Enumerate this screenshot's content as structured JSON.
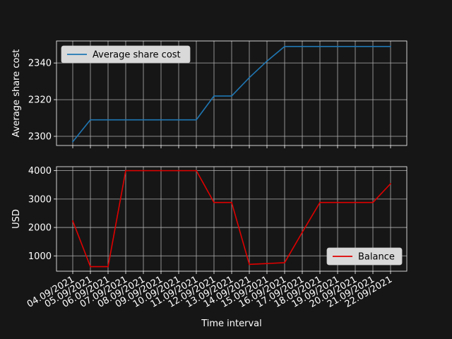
{
  "colors": {
    "background": "#161616",
    "axes_face": "#161616",
    "grid": "#b0b0b0",
    "text": "#ffffff",
    "legend_face": "#d9d9d9",
    "series_top": "#1f77b4",
    "series_bottom": "#e00000"
  },
  "chart_data": [
    {
      "type": "line",
      "title": "",
      "xlabel": "",
      "ylabel": "Average share cost",
      "categories": [
        "04.09/2021",
        "05.09/2021",
        "06.09/2021",
        "07.09/2021",
        "08.09/2021",
        "09.09/2021",
        "10.09/2021",
        "11.09/2021",
        "12.09/2021",
        "13.09/2021",
        "14.09/2021",
        "15.09/2021",
        "16.09/2021",
        "17.09/2021",
        "18.09/2021",
        "19.09/2021",
        "20.09/2021",
        "21.09/2021",
        "22.09/2021"
      ],
      "series": [
        {
          "name": "Average share cost",
          "color": "#1f77b4",
          "values": [
            2297,
            2309,
            2309,
            2309,
            2309,
            2309,
            2309,
            2309,
            2322,
            2322,
            2332,
            2341,
            2349,
            2349,
            2349,
            2349,
            2349,
            2349,
            2349
          ]
        }
      ],
      "ylim": [
        2295,
        2352
      ],
      "yticks": [
        2300,
        2320,
        2340
      ],
      "grid": true,
      "legend_position": "upper-left"
    },
    {
      "type": "line",
      "title": "",
      "xlabel": "Time interval",
      "ylabel": "USD",
      "categories": [
        "04.09/2021",
        "05.09/2021",
        "06.09/2021",
        "07.09/2021",
        "08.09/2021",
        "09.09/2021",
        "10.09/2021",
        "11.09/2021",
        "12.09/2021",
        "13.09/2021",
        "14.09/2021",
        "15.09/2021",
        "16.09/2021",
        "17.09/2021",
        "18.09/2021",
        "19.09/2021",
        "20.09/2021",
        "21.09/2021",
        "22.09/2021"
      ],
      "series": [
        {
          "name": "Balance",
          "color": "#e00000",
          "values": [
            2230,
            620,
            620,
            4000,
            4000,
            4000,
            4000,
            4000,
            2880,
            2880,
            700,
            730,
            760,
            1830,
            2880,
            2880,
            2880,
            2880,
            3540
          ]
        }
      ],
      "ylim": [
        460,
        4140
      ],
      "yticks": [
        1000,
        2000,
        3000,
        4000
      ],
      "grid": true,
      "legend_position": "lower-right"
    }
  ]
}
